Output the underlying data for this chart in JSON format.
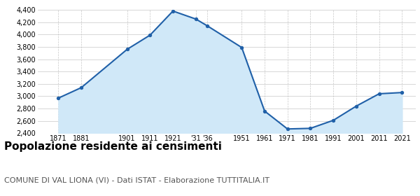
{
  "years": [
    1871,
    1881,
    1901,
    1911,
    1921,
    1931,
    1936,
    1951,
    1961,
    1971,
    1981,
    1991,
    2001,
    2011,
    2021
  ],
  "population": [
    2970,
    3140,
    3760,
    3990,
    4380,
    4250,
    4140,
    3790,
    2760,
    2470,
    2480,
    2610,
    2840,
    3040,
    3060
  ],
  "ylim": [
    2400,
    4400
  ],
  "yticks": [
    2400,
    2600,
    2800,
    3000,
    3200,
    3400,
    3600,
    3800,
    4000,
    4200,
    4400
  ],
  "xtick_positions": [
    1871,
    1881,
    1901,
    1911,
    1921,
    1931,
    1936,
    1951,
    1961,
    1971,
    1981,
    1991,
    2001,
    2011,
    2021
  ],
  "xtick_labels": [
    "1871",
    "1881",
    "1901",
    "1911",
    "1921",
    "'31",
    "'36",
    "1951",
    "1961",
    "1971",
    "1981",
    "1991",
    "2001",
    "2011",
    "2021"
  ],
  "line_color": "#2060a8",
  "fill_color": "#d0e8f8",
  "marker_color": "#2060a8",
  "bg_color": "#ffffff",
  "grid_color": "#c8c8c8",
  "title": "Popolazione residente ai censimenti",
  "subtitle": "COMUNE DI VAL LIONA (VI) - Dati ISTAT - Elaborazione TUTTITALIA.IT",
  "title_fontsize": 11,
  "subtitle_fontsize": 8,
  "tick_fontsize": 7,
  "xlim_left": 1862,
  "xlim_right": 2027
}
